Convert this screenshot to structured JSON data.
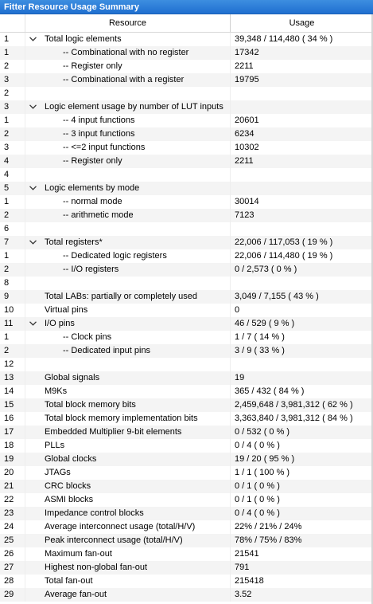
{
  "title": "Fitter Resource Usage Summary",
  "columns": {
    "resource": "Resource",
    "usage": "Usage"
  },
  "rows": [
    {
      "num": "1",
      "label": "Total logic elements",
      "usage": "39,348 / 114,480 ( 34 % )",
      "expand": true,
      "indent": 0
    },
    {
      "num": "1",
      "label": "-- Combinational with no register",
      "usage": "17342",
      "indent": 1
    },
    {
      "num": "2",
      "label": "-- Register only",
      "usage": "2211",
      "indent": 1
    },
    {
      "num": "3",
      "label": "-- Combinational with a register",
      "usage": "19795",
      "indent": 1
    },
    {
      "num": "2",
      "label": "",
      "usage": "",
      "indent": 0
    },
    {
      "num": "3",
      "label": "Logic element usage by number of LUT inputs",
      "usage": "",
      "expand": true,
      "indent": 0
    },
    {
      "num": "1",
      "label": "-- 4 input functions",
      "usage": "20601",
      "indent": 1
    },
    {
      "num": "2",
      "label": "-- 3 input functions",
      "usage": "6234",
      "indent": 1
    },
    {
      "num": "3",
      "label": "-- <=2 input functions",
      "usage": "10302",
      "indent": 1
    },
    {
      "num": "4",
      "label": "-- Register only",
      "usage": "2211",
      "indent": 1
    },
    {
      "num": "4",
      "label": "",
      "usage": "",
      "indent": 0
    },
    {
      "num": "5",
      "label": "Logic elements by mode",
      "usage": "",
      "expand": true,
      "indent": 0
    },
    {
      "num": "1",
      "label": "-- normal mode",
      "usage": "30014",
      "indent": 1
    },
    {
      "num": "2",
      "label": "-- arithmetic mode",
      "usage": "7123",
      "indent": 1
    },
    {
      "num": "6",
      "label": "",
      "usage": "",
      "indent": 0
    },
    {
      "num": "7",
      "label": "Total registers*",
      "usage": "22,006 / 117,053 ( 19 % )",
      "expand": true,
      "indent": 0
    },
    {
      "num": "1",
      "label": "-- Dedicated logic registers",
      "usage": "22,006 / 114,480 ( 19 % )",
      "indent": 1
    },
    {
      "num": "2",
      "label": "-- I/O registers",
      "usage": "0 / 2,573 ( 0 % )",
      "indent": 1
    },
    {
      "num": "8",
      "label": "",
      "usage": "",
      "indent": 0
    },
    {
      "num": "9",
      "label": "Total LABs:  partially or completely used",
      "usage": "3,049 / 7,155 ( 43 % )",
      "indent": 0
    },
    {
      "num": "10",
      "label": "Virtual pins",
      "usage": "0",
      "indent": 0
    },
    {
      "num": "11",
      "label": "I/O pins",
      "usage": "46 / 529 ( 9 % )",
      "expand": true,
      "indent": 0
    },
    {
      "num": "1",
      "label": "-- Clock pins",
      "usage": "1 / 7 ( 14 % )",
      "indent": 1
    },
    {
      "num": "2",
      "label": "-- Dedicated input pins",
      "usage": "3 / 9 ( 33 % )",
      "indent": 1
    },
    {
      "num": "12",
      "label": "",
      "usage": "",
      "indent": 0
    },
    {
      "num": "13",
      "label": "Global signals",
      "usage": "19",
      "indent": 0
    },
    {
      "num": "14",
      "label": "M9Ks",
      "usage": "365 / 432 ( 84 % )",
      "indent": 0
    },
    {
      "num": "15",
      "label": "Total block memory bits",
      "usage": "2,459,648 / 3,981,312 ( 62 % )",
      "indent": 0
    },
    {
      "num": "16",
      "label": "Total block memory implementation bits",
      "usage": "3,363,840 / 3,981,312 ( 84 % )",
      "indent": 0
    },
    {
      "num": "17",
      "label": "Embedded Multiplier 9-bit elements",
      "usage": "0 / 532 ( 0 % )",
      "indent": 0
    },
    {
      "num": "18",
      "label": "PLLs",
      "usage": "0 / 4 ( 0 % )",
      "indent": 0
    },
    {
      "num": "19",
      "label": "Global clocks",
      "usage": "19 / 20 ( 95 % )",
      "indent": 0
    },
    {
      "num": "20",
      "label": "JTAGs",
      "usage": "1 / 1 ( 100 % )",
      "indent": 0
    },
    {
      "num": "21",
      "label": "CRC blocks",
      "usage": "0 / 1 ( 0 % )",
      "indent": 0
    },
    {
      "num": "22",
      "label": "ASMI blocks",
      "usage": "0 / 1 ( 0 % )",
      "indent": 0
    },
    {
      "num": "23",
      "label": "Impedance control blocks",
      "usage": "0 / 4 ( 0 % )",
      "indent": 0
    },
    {
      "num": "24",
      "label": "Average interconnect usage (total/H/V)",
      "usage": "22% / 21% / 24%",
      "indent": 0
    },
    {
      "num": "25",
      "label": "Peak interconnect usage (total/H/V)",
      "usage": "78% / 75% / 83%",
      "indent": 0
    },
    {
      "num": "26",
      "label": "Maximum fan-out",
      "usage": "21541",
      "indent": 0
    },
    {
      "num": "27",
      "label": "Highest non-global fan-out",
      "usage": "791",
      "indent": 0
    },
    {
      "num": "28",
      "label": "Total fan-out",
      "usage": "215418",
      "indent": 0
    },
    {
      "num": "29",
      "label": "Average fan-out",
      "usage": "3.52",
      "indent": 0
    }
  ]
}
